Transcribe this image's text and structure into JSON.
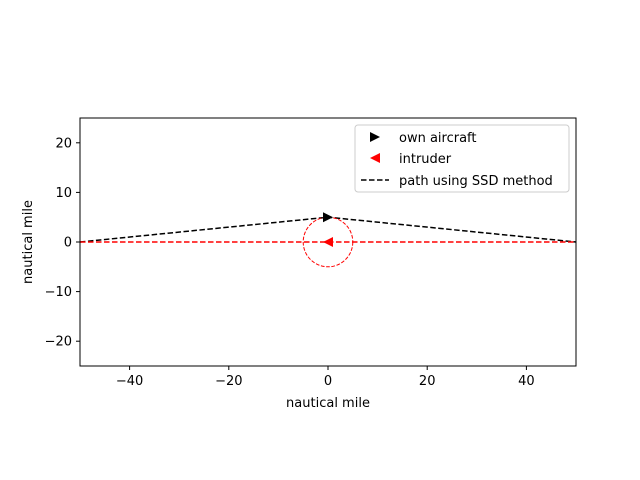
{
  "chart_data": {
    "type": "line",
    "title": "",
    "xlabel": "nautical mile",
    "ylabel": "nautical mile",
    "xlim": [
      -50,
      50
    ],
    "ylim": [
      -25,
      25
    ],
    "xticks": [
      -40,
      -20,
      0,
      20,
      40
    ],
    "yticks": [
      -20,
      -10,
      0,
      10,
      20
    ],
    "xtick_labels": [
      "−40",
      "−20",
      "0",
      "20",
      "40"
    ],
    "ytick_labels": [
      "−20",
      "−10",
      "0",
      "10",
      "20"
    ],
    "grid": false,
    "legend_position": "top-right",
    "legend": [
      {
        "label": "own aircraft",
        "marker": "triangle-right",
        "color": "#000000"
      },
      {
        "label": "intruder",
        "marker": "triangle-left",
        "color": "#ff0000"
      },
      {
        "label": "path using SSD method",
        "marker": "dashed-line",
        "color": "#000000"
      }
    ],
    "series": [
      {
        "label_ref": 2,
        "style": "dashed",
        "color": "#000000",
        "x": [
          -50,
          0,
          50
        ],
        "y": [
          0,
          5,
          0
        ]
      },
      {
        "style": "dashed",
        "color": "#ff0000",
        "x": [
          -50,
          50
        ],
        "y": [
          0,
          0
        ]
      }
    ],
    "markers": [
      {
        "label_ref": 0,
        "shape": "triangle-right",
        "color": "#000000",
        "x": 0,
        "y": 5
      },
      {
        "label_ref": 1,
        "shape": "triangle-left",
        "color": "#ff0000",
        "x": 0,
        "y": 0
      }
    ],
    "circles": [
      {
        "center_x": 0,
        "center_y": 0,
        "radius": 5,
        "color": "#ff0000",
        "style": "dashed"
      }
    ]
  }
}
